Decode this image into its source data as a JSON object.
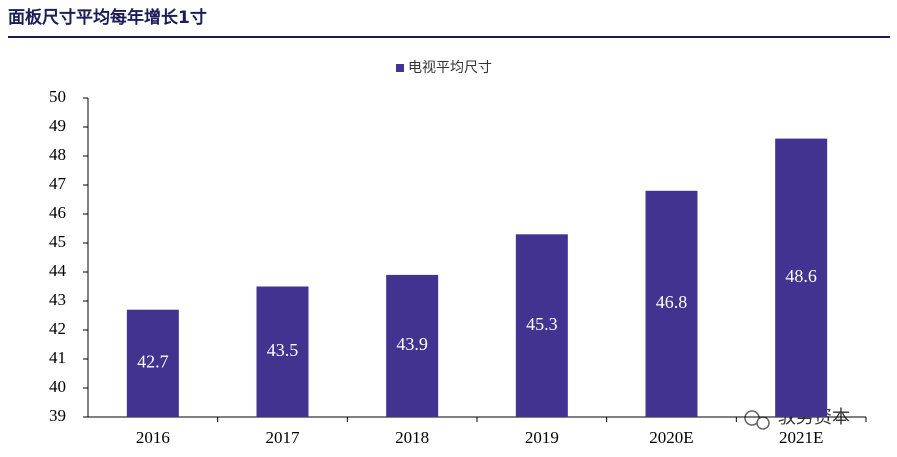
{
  "chart_data": {
    "type": "bar",
    "title": "面板尺寸平均每年增长1寸",
    "categories": [
      "2016",
      "2017",
      "2018",
      "2019",
      "2020E",
      "2021E"
    ],
    "series": [
      {
        "name": "电视平均尺寸",
        "color": "#433390",
        "values": [
          42.7,
          43.5,
          43.9,
          45.3,
          46.8,
          48.6
        ]
      }
    ],
    "ylim": [
      39,
      50
    ],
    "yticks": [
      39,
      40,
      41,
      42,
      43,
      44,
      45,
      46,
      47,
      48,
      49,
      50
    ],
    "grid": false,
    "legend": "top",
    "watermark": "驭势资本"
  }
}
